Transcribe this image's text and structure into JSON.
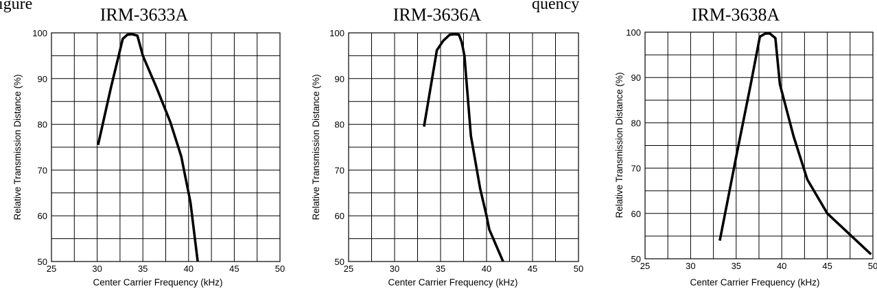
{
  "top_text": "igure",
  "top_text_right": "quency",
  "chart_data": [
    {
      "type": "line",
      "title": "IRM-3633A",
      "xlabel": "Center Carrier Frequency  (kHz)",
      "ylabel": "Relative Transmission Distance (%)",
      "xlim": [
        25,
        50
      ],
      "ylim": [
        50,
        100
      ],
      "x_ticks": [
        25,
        30,
        35,
        40,
        45,
        50
      ],
      "y_ticks": [
        50,
        60,
        70,
        80,
        90,
        100
      ],
      "grid": true,
      "series": [
        {
          "x": [
            30.1,
            31.5,
            32.8,
            33.3,
            33.8,
            34.4,
            35.0,
            36.5,
            38.0,
            39.2,
            40.2,
            41.0
          ],
          "y": [
            75.5,
            88,
            98.7,
            99.6,
            99.7,
            99.4,
            95,
            88,
            80.5,
            73,
            63,
            50
          ]
        }
      ]
    },
    {
      "type": "line",
      "title": "IRM-3636A",
      "xlabel": "Center Carrier Frequency  (kHz)",
      "ylabel": "Relative Transmission Distance (%)",
      "xlim": [
        25,
        50
      ],
      "ylim": [
        50,
        100
      ],
      "x_ticks": [
        25,
        30,
        35,
        40,
        45,
        50
      ],
      "y_ticks": [
        50,
        60,
        70,
        80,
        90,
        100
      ],
      "grid": true,
      "series": [
        {
          "x": [
            33.2,
            34.6,
            35.3,
            36.0,
            36.6,
            37.0,
            37.3,
            37.6,
            38.3,
            39.3,
            40.0,
            40.3,
            41.8
          ],
          "y": [
            79.5,
            96.2,
            98.3,
            99.6,
            99.7,
            99.6,
            98,
            95,
            77.5,
            66,
            60,
            57,
            50
          ]
        }
      ]
    },
    {
      "type": "line",
      "title": "IRM-3638A",
      "xlabel": "Center Carrier Frequency  (kHz)",
      "ylabel": "Relative Transmission Distance (%)",
      "xlim": [
        25,
        50
      ],
      "ylim": [
        50,
        100
      ],
      "x_ticks": [
        25,
        30,
        35,
        40,
        45,
        50
      ],
      "y_ticks": [
        50,
        60,
        70,
        80,
        90,
        100
      ],
      "grid": true,
      "series": [
        {
          "x": [
            33.2,
            35.0,
            36.6,
            37.6,
            38.2,
            38.7,
            39.3,
            39.8,
            41.3,
            42.8,
            45.0,
            49.8
          ],
          "y": [
            54,
            72.5,
            88.5,
            99.0,
            99.7,
            99.7,
            98.7,
            88.5,
            77,
            67.5,
            60,
            51
          ]
        }
      ]
    }
  ]
}
